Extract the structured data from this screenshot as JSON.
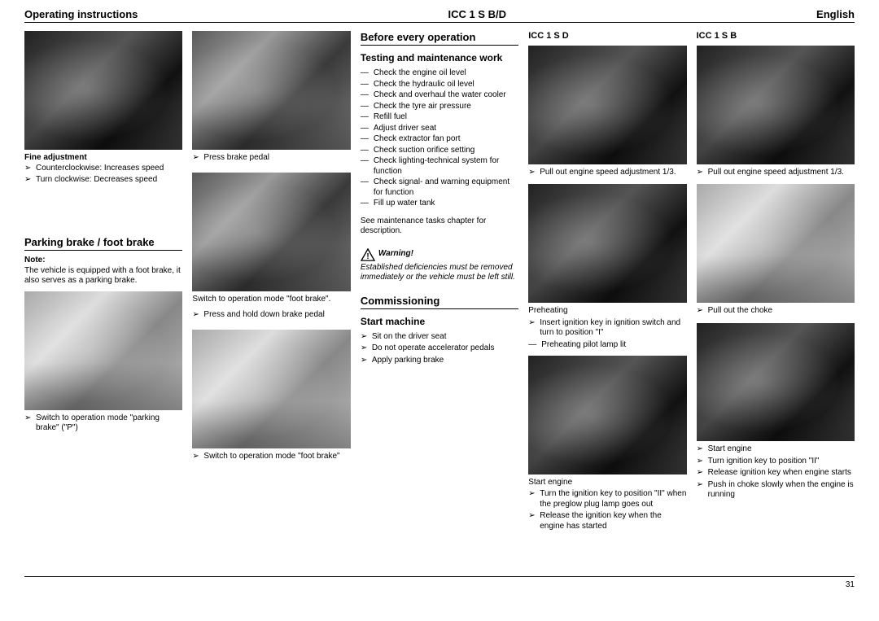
{
  "header": {
    "left": "Operating instructions",
    "center": "ICC 1 S B/D",
    "right": "English"
  },
  "page_number": "31",
  "col1": {
    "fine_adj_title": "Fine adjustment",
    "fine_adj": [
      "Counterclockwise: Increases speed",
      "Turn clockwise: Decreases speed"
    ],
    "parking_brake_h": "Parking brake / foot brake",
    "note_label": "Note:",
    "note_text": "The vehicle is equipped with a foot brake, it also serves as a parking brake.",
    "cap1": "Switch to operation mode \"parking brake\" (\"P\")"
  },
  "col2": {
    "cap1": "Press brake pedal",
    "mid_text": "Switch to operation mode \"foot brake\".",
    "cap2": "Press and hold down brake pedal",
    "cap3": "Switch to operation mode \"foot brake\""
  },
  "col3": {
    "h_before": "Before every operation",
    "h_testing": "Testing and maintenance work",
    "checks": [
      "Check the engine oil level",
      "Check the hydraulic oil level",
      "Check and overhaul the water cooler",
      "Check the tyre air pressure",
      "Refill fuel",
      "Adjust driver seat",
      "Check extractor fan port",
      "Check suction orifice setting",
      "Check lighting-technical system for function",
      "Check signal- and warning equipment for function",
      "Fill up water tank"
    ],
    "see_text": "See maintenance tasks chapter for description.",
    "warning_label": "Warning!",
    "warning_text": "Established deficiencies must be removed immediately or the vehicle must be left still.",
    "h_comm": "Commissioning",
    "h_start": "Start machine",
    "start_items": [
      "Sit on the driver seat",
      "Do not operate accelerator pedals",
      "Apply parking brake"
    ]
  },
  "col4": {
    "title": "ICC 1 S D",
    "cap1": "Pull out engine speed adjustment 1/3.",
    "preheat_label": "Preheating",
    "preheat_items": [
      "Insert ignition key in ignition switch and turn to position \"I\"",
      "Preheating pilot lamp lit"
    ],
    "start_label": "Start engine",
    "start_items": [
      "Turn the ignition key to position \"II\" when the preglow plug lamp goes out",
      "Release the ignition key when the engine has started"
    ]
  },
  "col5": {
    "title": "ICC 1 S B",
    "cap1": "Pull out engine speed adjustment 1/3.",
    "choke": "Pull out the choke",
    "start_label": "Start engine",
    "start_items": [
      "Turn ignition key to position \"II\"",
      "Release ignition key when engine starts",
      "Push in choke slowly when the engine is running"
    ]
  }
}
